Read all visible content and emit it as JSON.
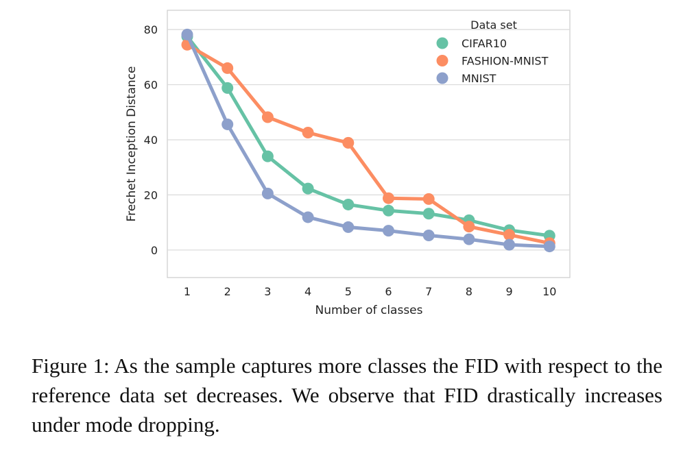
{
  "chart_data": {
    "type": "line",
    "x": [
      1,
      2,
      3,
      4,
      5,
      6,
      7,
      8,
      9,
      10
    ],
    "xlabel": "Number of classes",
    "ylabel": "Frechet Inception Distance",
    "xticks": [
      "1",
      "2",
      "3",
      "4",
      "5",
      "6",
      "7",
      "8",
      "9",
      "10"
    ],
    "yticks": [
      0,
      20,
      40,
      60,
      80
    ],
    "ylim": [
      -10,
      87
    ],
    "grid": true,
    "legend": {
      "title": "Data set",
      "placement": "top-right"
    },
    "series": [
      {
        "name": "CIFAR10",
        "color": "#66c2a5",
        "values": [
          77.5,
          58.8,
          34.0,
          22.3,
          16.5,
          14.3,
          13.2,
          10.8,
          7.2,
          5.2
        ]
      },
      {
        "name": "FASHION-MNIST",
        "color": "#fc8d62",
        "values": [
          74.5,
          66.0,
          48.2,
          42.6,
          38.9,
          18.8,
          18.5,
          8.5,
          5.5,
          2.5
        ]
      },
      {
        "name": "MNIST",
        "color": "#8da0cb",
        "values": [
          78.2,
          45.6,
          20.5,
          11.9,
          8.3,
          7.0,
          5.3,
          3.9,
          1.9,
          1.3
        ]
      }
    ]
  },
  "caption": "Figure 1:  As the sample captures more classes the FID with respect to the reference data set decreases.  We observe that FID drastically increases under mode dropping."
}
